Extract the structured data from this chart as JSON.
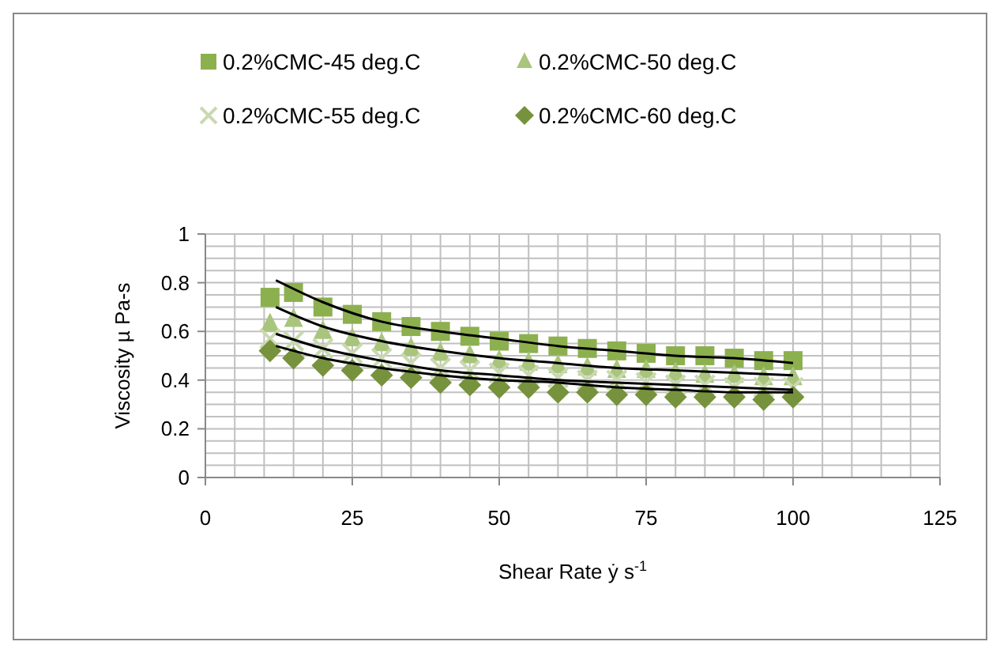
{
  "chart_data": {
    "type": "scatter",
    "xlabel": "Shear Rate ẏ  s$^{-1}$",
    "ylabel": "Viscosity  µ  Pa-s",
    "xlim": [
      0,
      125
    ],
    "xticks": [
      0,
      {
        "value": 5,
        "label": null
      },
      {
        "value": 10,
        "label": null
      },
      {
        "value": 15,
        "label": null
      },
      {
        "value": 20,
        "label": null
      },
      25,
      {
        "value": 30,
        "label": null
      },
      {
        "value": 35,
        "label": null
      },
      {
        "value": 40,
        "label": null
      },
      {
        "value": 45,
        "label": null
      },
      50,
      {
        "value": 55,
        "label": null
      },
      {
        "value": 60,
        "label": null
      },
      {
        "value": 65,
        "label": null
      },
      {
        "value": 70,
        "label": null
      },
      75,
      {
        "value": 80,
        "label": null
      },
      {
        "value": 85,
        "label": null
      },
      {
        "value": 90,
        "label": null
      },
      {
        "value": 95,
        "label": null
      },
      100,
      {
        "value": 105,
        "label": null
      },
      {
        "value": 110,
        "label": null
      },
      {
        "value": 115,
        "label": null
      },
      {
        "value": 120,
        "label": null
      },
      125
    ],
    "ylim": [
      0,
      1
    ],
    "yticks": [
      0,
      {
        "value": 0.05,
        "label": null
      },
      {
        "value": 0.1,
        "label": null
      },
      {
        "value": 0.15,
        "label": null
      },
      0.2,
      {
        "value": 0.25,
        "label": null
      },
      {
        "value": 0.3,
        "label": null
      },
      {
        "value": 0.35,
        "label": null
      },
      0.4,
      {
        "value": 0.45,
        "label": null
      },
      {
        "value": 0.5,
        "label": null
      },
      {
        "value": 0.55,
        "label": null
      },
      0.6,
      {
        "value": 0.65,
        "label": null
      },
      {
        "value": 0.7,
        "label": null
      },
      {
        "value": 0.75,
        "label": null
      },
      0.8,
      {
        "value": 0.85,
        "label": null
      },
      {
        "value": 0.9,
        "label": null
      },
      {
        "value": 0.95,
        "label": null
      },
      1
    ],
    "grid": true,
    "legend": "top",
    "x": [
      11,
      15,
      20,
      25,
      30,
      35,
      40,
      45,
      50,
      55,
      60,
      65,
      70,
      75,
      80,
      85,
      90,
      95,
      100
    ],
    "series": [
      {
        "name": "0.2%CMC-45 deg.C",
        "color": "#8db04f",
        "marker": "square",
        "values": [
          0.74,
          0.76,
          0.7,
          0.67,
          0.64,
          0.62,
          0.6,
          0.58,
          0.56,
          0.55,
          0.54,
          0.53,
          0.52,
          0.51,
          0.5,
          0.5,
          0.49,
          0.48,
          0.48
        ]
      },
      {
        "name": "0.2%CMC-50 deg.C",
        "color": "#a9c57d",
        "marker": "triangle",
        "values": [
          0.63,
          0.65,
          0.6,
          0.57,
          0.55,
          0.53,
          0.51,
          0.5,
          0.48,
          0.47,
          0.46,
          0.45,
          0.44,
          0.44,
          0.43,
          0.42,
          0.42,
          0.41,
          0.41
        ]
      },
      {
        "name": "0.2%CMC-55 deg.C",
        "color": "#c9d9b0",
        "marker": "cross",
        "values": [
          0.57,
          0.56,
          0.53,
          0.51,
          0.49,
          0.47,
          0.45,
          0.44,
          0.43,
          0.42,
          0.41,
          0.4,
          0.4,
          0.39,
          0.38,
          0.38,
          0.37,
          0.37,
          0.37
        ]
      },
      {
        "name": "0.2%CMC-60 deg.C",
        "color": "#77923c",
        "marker": "diamond",
        "values": [
          0.52,
          0.49,
          0.46,
          0.44,
          0.42,
          0.41,
          0.39,
          0.38,
          0.37,
          0.37,
          0.35,
          0.35,
          0.34,
          0.34,
          0.33,
          0.33,
          0.33,
          0.32,
          0.33
        ]
      },
      {
        "type": "line",
        "color": "#000000",
        "marker": "none",
        "x": [
          12,
          20,
          30,
          40,
          50,
          60,
          70,
          80,
          90,
          100
        ],
        "values": [
          0.81,
          0.72,
          0.64,
          0.6,
          0.57,
          0.54,
          0.52,
          0.5,
          0.49,
          0.47
        ]
      },
      {
        "type": "line",
        "color": "#000000",
        "marker": "none",
        "x": [
          12,
          20,
          30,
          40,
          50,
          60,
          70,
          80,
          90,
          100
        ],
        "values": [
          0.7,
          0.62,
          0.56,
          0.52,
          0.49,
          0.47,
          0.45,
          0.44,
          0.43,
          0.42
        ]
      },
      {
        "type": "line",
        "color": "#000000",
        "marker": "none",
        "x": [
          12,
          20,
          30,
          40,
          50,
          60,
          70,
          80,
          90,
          100
        ],
        "values": [
          0.59,
          0.53,
          0.48,
          0.44,
          0.42,
          0.4,
          0.39,
          0.38,
          0.37,
          0.36
        ]
      },
      {
        "type": "line",
        "color": "#000000",
        "marker": "none",
        "x": [
          12,
          20,
          30,
          40,
          50,
          60,
          70,
          80,
          90,
          100
        ],
        "values": [
          0.54,
          0.49,
          0.45,
          0.42,
          0.4,
          0.39,
          0.37,
          0.36,
          0.35,
          0.35
        ]
      }
    ]
  }
}
